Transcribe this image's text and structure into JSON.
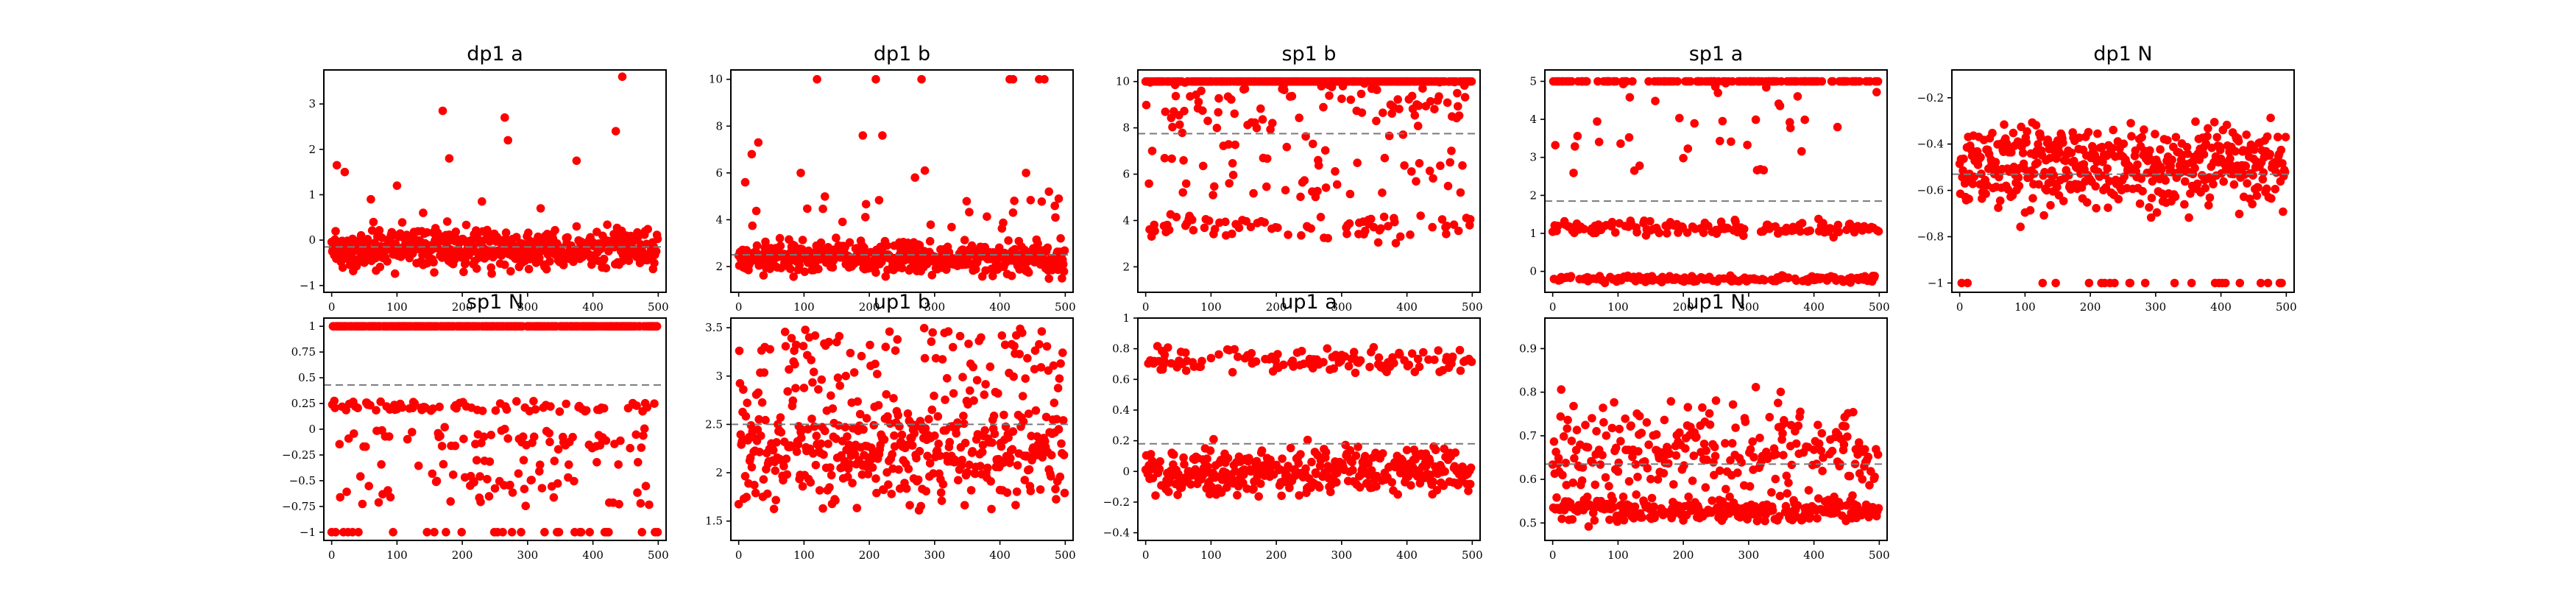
{
  "chart_data": [
    {
      "id": "dp1a",
      "type": "scatter",
      "title": "dp1 a",
      "series_color": "#ff0000",
      "mean_line_color": "#7a7a7a",
      "xlim": [
        -12,
        512
      ],
      "ylim": [
        -1.15,
        3.75
      ],
      "xticks": [
        0,
        100,
        200,
        300,
        400,
        500
      ],
      "yticks": [
        -1,
        0,
        1,
        2,
        3
      ],
      "mean": -0.15,
      "n": 500,
      "points": {
        "model": "dp1a"
      },
      "outliers": [
        [
          8,
          1.65
        ],
        [
          20,
          1.5
        ],
        [
          60,
          0.9
        ],
        [
          100,
          1.2
        ],
        [
          170,
          2.85
        ],
        [
          180,
          1.8
        ],
        [
          230,
          0.85
        ],
        [
          265,
          2.7
        ],
        [
          270,
          2.2
        ],
        [
          375,
          1.75
        ],
        [
          435,
          2.4
        ],
        [
          445,
          3.6
        ],
        [
          140,
          0.6
        ],
        [
          320,
          0.7
        ]
      ]
    },
    {
      "id": "dp1b",
      "type": "scatter",
      "title": "dp1 b",
      "series_color": "#ff0000",
      "mean_line_color": "#7a7a7a",
      "xlim": [
        -12,
        512
      ],
      "ylim": [
        0.9,
        10.4
      ],
      "xticks": [
        0,
        100,
        200,
        300,
        400,
        500
      ],
      "yticks": [
        2,
        4,
        6,
        8,
        10
      ],
      "mean": 2.5,
      "n": 500,
      "points": {
        "model": "dp1b"
      },
      "outliers": [
        [
          120,
          10
        ],
        [
          210,
          10
        ],
        [
          280,
          10
        ],
        [
          415,
          10
        ],
        [
          420,
          10
        ],
        [
          460,
          10
        ],
        [
          468,
          10
        ],
        [
          190,
          7.6
        ],
        [
          220,
          7.6
        ],
        [
          20,
          6.8
        ],
        [
          30,
          7.3
        ],
        [
          10,
          5.6
        ],
        [
          270,
          5.8
        ],
        [
          285,
          6.1
        ],
        [
          440,
          6.0
        ],
        [
          475,
          5.2
        ],
        [
          490,
          4.9
        ],
        [
          95,
          6.0
        ]
      ]
    },
    {
      "id": "sp1b",
      "type": "scatter",
      "title": "sp1 b",
      "series_color": "#ff0000",
      "mean_line_color": "#7a7a7a",
      "xlim": [
        -12,
        512
      ],
      "ylim": [
        0.9,
        10.5
      ],
      "xticks": [
        0,
        100,
        200,
        300,
        400,
        500
      ],
      "yticks": [
        2,
        4,
        6,
        8,
        10
      ],
      "mean": 7.75,
      "n": 500,
      "points": {
        "model": "sp1b"
      }
    },
    {
      "id": "sp1a",
      "type": "scatter",
      "title": "sp1 a",
      "series_color": "#ff0000",
      "mean_line_color": "#7a7a7a",
      "xlim": [
        -12,
        512
      ],
      "ylim": [
        -0.55,
        5.3
      ],
      "xticks": [
        0,
        100,
        200,
        300,
        400,
        500
      ],
      "yticks": [
        0,
        1,
        2,
        3,
        4,
        5
      ],
      "mean": 1.85,
      "n": 500,
      "points": {
        "model": "sp1a"
      }
    },
    {
      "id": "dp1N",
      "type": "scatter",
      "title": "dp1 N",
      "series_color": "#ff0000",
      "mean_line_color": "#7a7a7a",
      "xlim": [
        -12,
        512
      ],
      "ylim": [
        -1.04,
        -0.08
      ],
      "xticks": [
        0,
        100,
        200,
        300,
        400,
        500
      ],
      "yticks": [
        -1.0,
        -0.8,
        -0.6,
        -0.4,
        -0.2
      ],
      "mean": -0.53,
      "n": 500,
      "points": {
        "model": "dp1N"
      }
    },
    {
      "id": "sp1N",
      "type": "scatter",
      "title": "sp1 N",
      "series_color": "#ff0000",
      "mean_line_color": "#7a7a7a",
      "xlim": [
        -12,
        512
      ],
      "ylim": [
        -1.08,
        1.08
      ],
      "xticks": [
        0,
        100,
        200,
        300,
        400,
        500
      ],
      "yticks": [
        -1.0,
        -0.75,
        -0.5,
        -0.25,
        0.0,
        0.25,
        0.5,
        0.75,
        1.0
      ],
      "mean": 0.43,
      "n": 500,
      "points": {
        "model": "sp1N"
      }
    },
    {
      "id": "up1b",
      "type": "scatter",
      "title": "up1 b",
      "series_color": "#ff0000",
      "mean_line_color": "#7a7a7a",
      "xlim": [
        -12,
        512
      ],
      "ylim": [
        1.3,
        3.6
      ],
      "xticks": [
        0,
        100,
        200,
        300,
        400,
        500
      ],
      "yticks": [
        1.5,
        2.0,
        2.5,
        3.0,
        3.5
      ],
      "mean": 2.5,
      "n": 500,
      "points": {
        "model": "up1b"
      }
    },
    {
      "id": "up1a",
      "type": "scatter",
      "title": "up1 a",
      "series_color": "#ff0000",
      "mean_line_color": "#7a7a7a",
      "xlim": [
        -12,
        512
      ],
      "ylim": [
        -0.45,
        1.0
      ],
      "xticks": [
        0,
        100,
        200,
        300,
        400,
        500
      ],
      "yticks": [
        -0.4,
        -0.2,
        0.0,
        0.2,
        0.4,
        0.6,
        0.8,
        1.0
      ],
      "mean": 0.18,
      "n": 500,
      "points": {
        "model": "up1a"
      }
    },
    {
      "id": "up1N",
      "type": "scatter",
      "title": "up1 N",
      "series_color": "#ff0000",
      "mean_line_color": "#7a7a7a",
      "xlim": [
        -12,
        512
      ],
      "ylim": [
        0.46,
        0.97
      ],
      "xticks": [
        0,
        100,
        200,
        300,
        400,
        500
      ],
      "yticks": [
        0.5,
        0.6,
        0.7,
        0.8,
        0.9
      ],
      "mean": 0.635,
      "n": 500,
      "points": {
        "model": "up1N"
      }
    }
  ]
}
